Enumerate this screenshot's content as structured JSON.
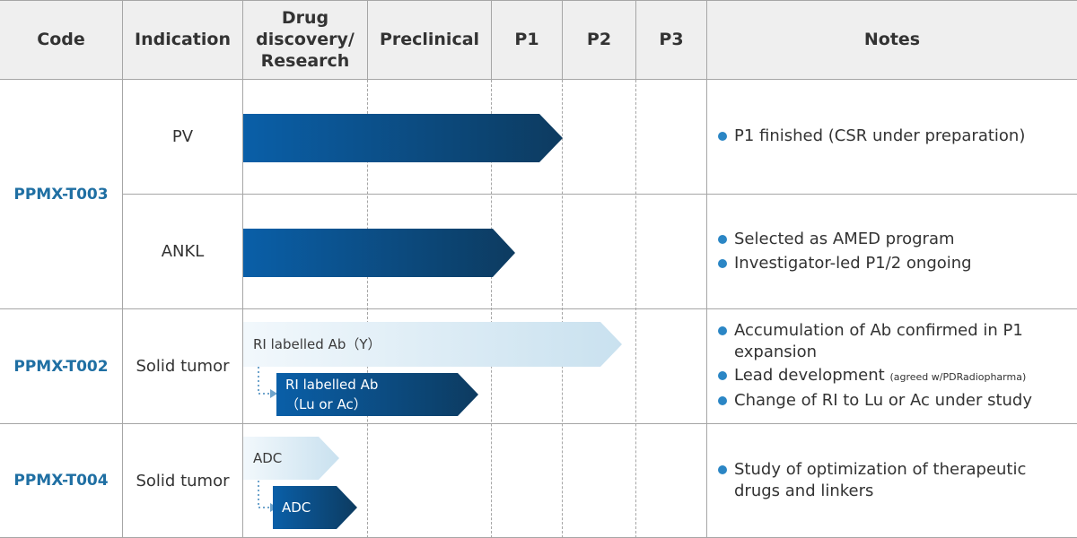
{
  "header": {
    "code": "Code",
    "indication": "Indication",
    "discovery_line1": "Drug",
    "discovery_line2": "discovery/",
    "discovery_line3": "Research",
    "preclinical": "Preclinical",
    "p1": "P1",
    "p2": "P2",
    "p3": "P3",
    "notes": "Notes"
  },
  "rows": [
    {
      "code": "PPMX-T003",
      "indications": [
        {
          "name": "PV",
          "progress_to": "end of P1",
          "notes": [
            "P1 finished (CSR under preparation)"
          ]
        },
        {
          "name": "ANKL",
          "progress_to": "end of Preclinical",
          "notes": [
            "Selected as AMED program",
            "Investigator-led P1/2 ongoing"
          ]
        }
      ]
    },
    {
      "code": "PPMX-T002",
      "indication": "Solid tumor",
      "arrows": [
        {
          "label": "RI labelled Ab（Y）",
          "progress_to": "into P2"
        },
        {
          "label_line1": "RI labelled Ab",
          "label_line2": "（Lu or Ac）",
          "progress_to": "end of Preclinical"
        }
      ],
      "notes": [
        {
          "text": "Accumulation of Ab confirmed in P1 expansion"
        },
        {
          "text": "Lead development",
          "small": "(agreed w/PDRadiopharma)"
        },
        {
          "text": "Change of RI to Lu or Ac under study"
        }
      ]
    },
    {
      "code": "PPMX-T004",
      "indication": "Solid tumor",
      "arrows": [
        {
          "label": "ADC",
          "progress_to": "within Drug discovery/Research"
        },
        {
          "label": "ADC",
          "progress_to": "within Drug discovery/Research"
        }
      ],
      "notes": [
        "Study of  optimization of therapeutic drugs and linkers"
      ]
    }
  ],
  "colors": {
    "code_text": "#1f6fa3",
    "bullet": "#2b86c5",
    "arrow_dark_start": "#0a5fa8",
    "arrow_dark_end": "#0d3b60",
    "arrow_light_start": "#f2f8fc",
    "arrow_light_end": "#c9e1ef",
    "header_bg": "#efefef"
  }
}
